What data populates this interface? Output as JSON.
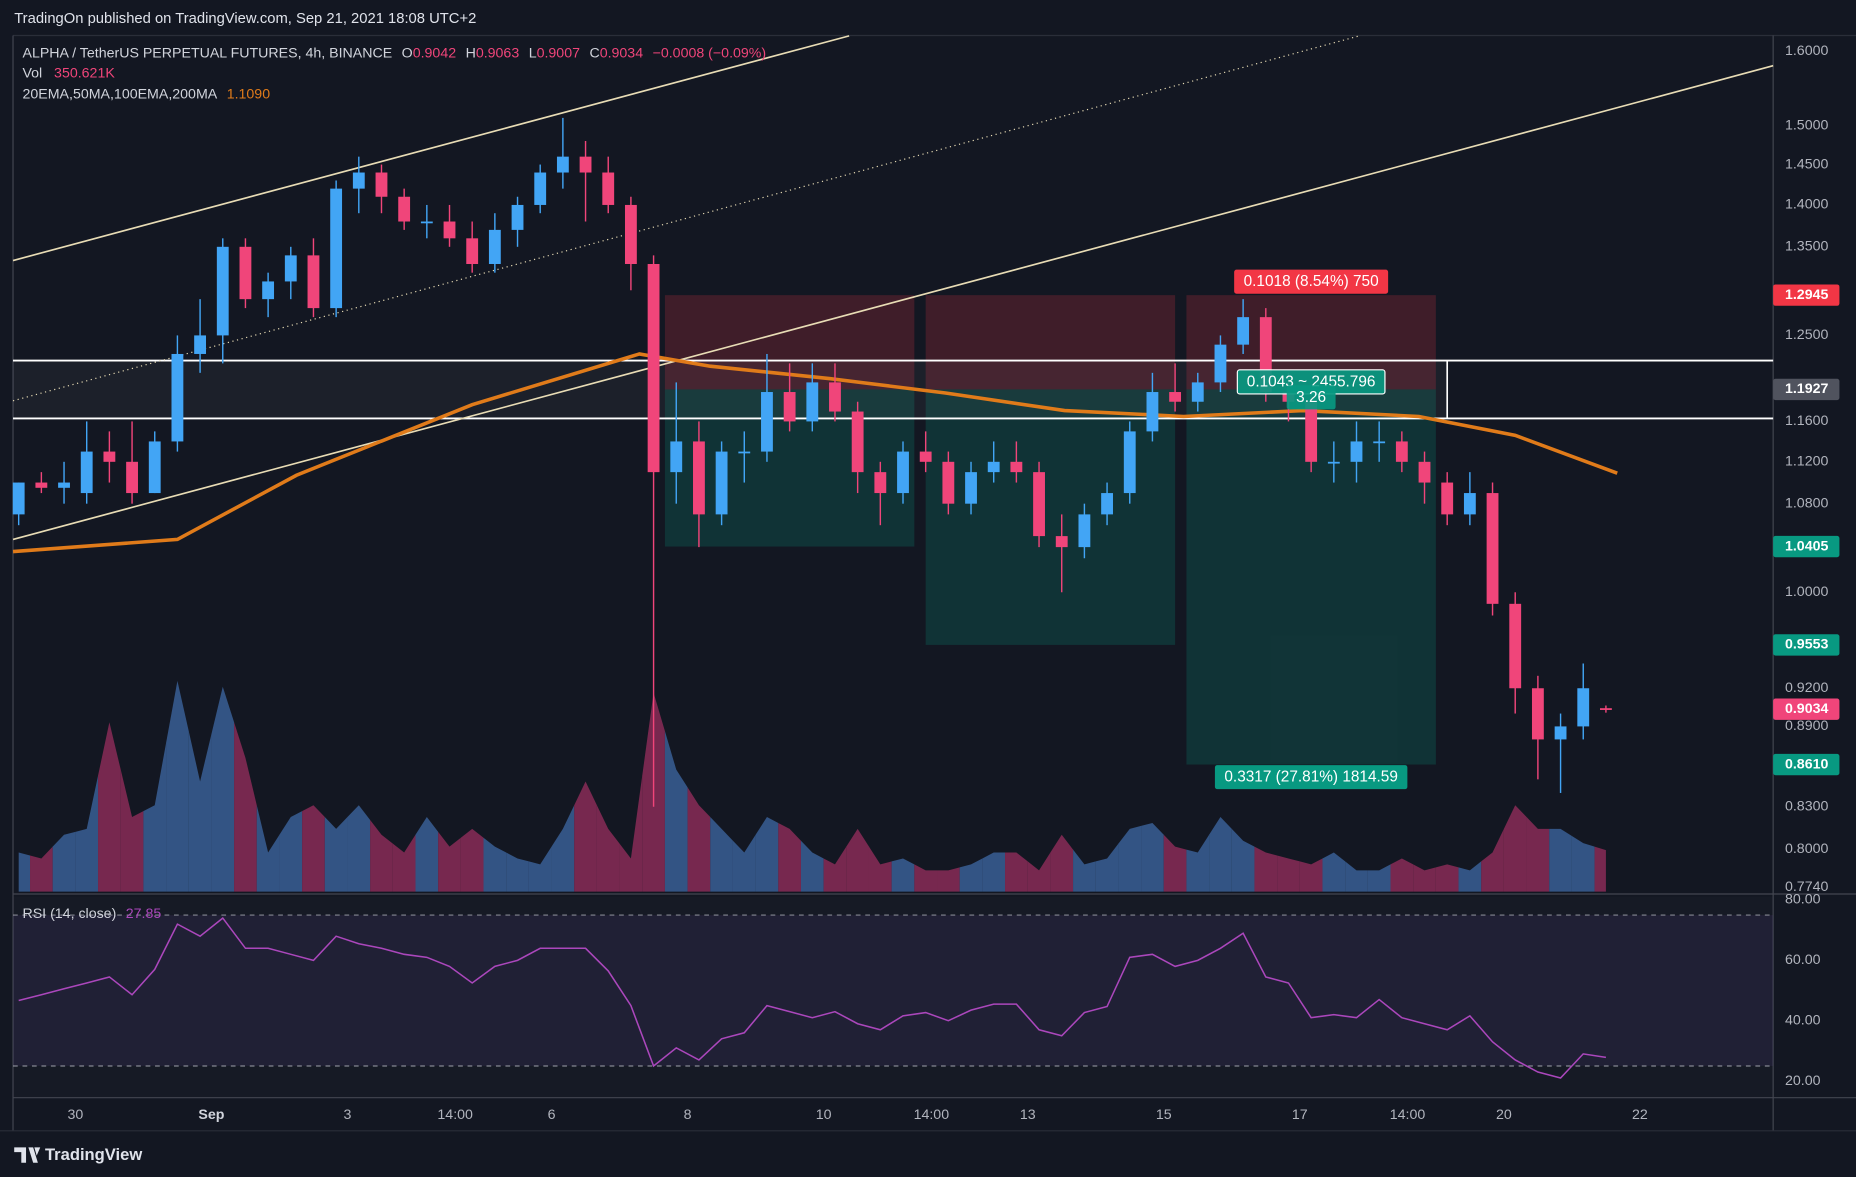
{
  "header": {
    "published": "TradingOn published on TradingView.com, Sep 21, 2021 18:08 UTC+2"
  },
  "footer": {
    "brand": "TradingView"
  },
  "chart_data": {
    "type": "candlestick",
    "title": "ALPHA / TetherUS PERPETUAL FUTURES, 4h, BINANCE",
    "ohlc_legend": [
      {
        "label": "O",
        "value": 0.9042
      },
      {
        "label": "H",
        "value": 0.9063
      },
      {
        "label": "L",
        "value": 0.9007
      },
      {
        "label": "C",
        "value": 0.9034
      }
    ],
    "change": "−0.0008 (−0.09%)",
    "log_scale": true,
    "up_color": "#42a5f5",
    "down_color": "#f0457a",
    "xlim": [
      -22,
      599
    ],
    "ylim": [
      0.771,
      1.622
    ],
    "xticks": [
      {
        "value": 0,
        "label": "30"
      },
      {
        "value": 48,
        "label": "Sep"
      },
      {
        "value": 96,
        "label": "3"
      },
      {
        "value": 134,
        "label": "14:00"
      },
      {
        "value": 168,
        "label": "6"
      },
      {
        "value": 216,
        "label": "8"
      },
      {
        "value": 264,
        "label": "10"
      },
      {
        "value": 302,
        "label": "14:00"
      },
      {
        "value": 336,
        "label": "13"
      },
      {
        "value": 384,
        "label": "15"
      },
      {
        "value": 432,
        "label": "17"
      },
      {
        "value": 470,
        "label": "14:00"
      },
      {
        "value": 504,
        "label": "20"
      },
      {
        "value": 552,
        "label": "22"
      }
    ],
    "yticks": [
      {
        "value": 1.6,
        "label": "1.6000"
      },
      {
        "value": 1.5,
        "label": "1.5000"
      },
      {
        "value": 1.45,
        "label": "1.4500"
      },
      {
        "value": 1.4,
        "label": "1.4000"
      },
      {
        "value": 1.35,
        "label": "1.3500"
      },
      {
        "value": 1.25,
        "label": "1.2500"
      },
      {
        "value": 1.16,
        "label": "1.1600"
      },
      {
        "value": 1.12,
        "label": "1.1200"
      },
      {
        "value": 1.08,
        "label": "1.0800"
      },
      {
        "value": 1.0,
        "label": "1.0000"
      },
      {
        "value": 0.92,
        "label": "0.9200"
      },
      {
        "value": 0.89,
        "label": "0.8900"
      },
      {
        "value": 0.83,
        "label": "0.8300"
      },
      {
        "value": 0.8,
        "label": "0.8000"
      },
      {
        "value": 0.774,
        "label": "0.7740"
      }
    ],
    "x": [
      -20,
      -12,
      -4,
      4,
      12,
      20,
      28,
      36,
      44,
      52,
      60,
      68,
      76,
      84,
      92,
      100,
      108,
      116,
      124,
      132,
      140,
      148,
      156,
      164,
      172,
      180,
      188,
      196,
      204,
      212,
      220,
      228,
      236,
      244,
      252,
      260,
      268,
      276,
      284,
      292,
      300,
      308,
      316,
      324,
      332,
      340,
      348,
      356,
      364,
      372,
      380,
      388,
      396,
      404,
      412,
      420,
      428,
      436,
      444,
      452,
      460,
      468,
      476,
      484,
      492,
      500,
      508,
      516,
      524,
      532,
      540
    ],
    "open": [
      1.07,
      1.1,
      1.095,
      1.09,
      1.13,
      1.12,
      1.09,
      1.14,
      1.23,
      1.25,
      1.35,
      1.29,
      1.31,
      1.34,
      1.28,
      1.42,
      1.44,
      1.41,
      1.38,
      1.38,
      1.36,
      1.33,
      1.37,
      1.4,
      1.44,
      1.46,
      1.44,
      1.4,
      1.33,
      1.11,
      1.14,
      1.07,
      1.13,
      1.13,
      1.19,
      1.16,
      1.2,
      1.17,
      1.11,
      1.09,
      1.13,
      1.12,
      1.08,
      1.11,
      1.12,
      1.11,
      1.05,
      1.04,
      1.07,
      1.09,
      1.15,
      1.19,
      1.18,
      1.2,
      1.24,
      1.27,
      1.19,
      1.18,
      1.12,
      1.12,
      1.14,
      1.14,
      1.12,
      1.1,
      1.07,
      1.09,
      0.99,
      0.92,
      0.88,
      0.89,
      0.9042
    ],
    "high": [
      1.1,
      1.11,
      1.12,
      1.16,
      1.15,
      1.16,
      1.15,
      1.25,
      1.29,
      1.36,
      1.36,
      1.32,
      1.35,
      1.36,
      1.43,
      1.46,
      1.45,
      1.42,
      1.4,
      1.4,
      1.38,
      1.39,
      1.41,
      1.45,
      1.51,
      1.48,
      1.46,
      1.41,
      1.34,
      1.2,
      1.16,
      1.14,
      1.15,
      1.23,
      1.22,
      1.22,
      1.22,
      1.18,
      1.12,
      1.14,
      1.15,
      1.13,
      1.12,
      1.14,
      1.14,
      1.12,
      1.07,
      1.08,
      1.1,
      1.16,
      1.21,
      1.22,
      1.21,
      1.25,
      1.29,
      1.28,
      1.21,
      1.19,
      1.14,
      1.16,
      1.16,
      1.15,
      1.13,
      1.11,
      1.11,
      1.1,
      1.0,
      0.93,
      0.9,
      0.94,
      0.9063
    ],
    "low": [
      1.06,
      1.09,
      1.08,
      1.08,
      1.1,
      1.08,
      1.09,
      1.13,
      1.21,
      1.22,
      1.28,
      1.27,
      1.29,
      1.27,
      1.27,
      1.39,
      1.39,
      1.37,
      1.36,
      1.35,
      1.32,
      1.32,
      1.35,
      1.39,
      1.42,
      1.38,
      1.39,
      1.3,
      0.83,
      1.08,
      1.04,
      1.06,
      1.1,
      1.12,
      1.15,
      1.15,
      1.16,
      1.09,
      1.06,
      1.08,
      1.11,
      1.07,
      1.07,
      1.1,
      1.1,
      1.04,
      1.0,
      1.03,
      1.06,
      1.08,
      1.14,
      1.17,
      1.17,
      1.19,
      1.23,
      1.18,
      1.16,
      1.11,
      1.1,
      1.1,
      1.12,
      1.11,
      1.08,
      1.06,
      1.06,
      0.98,
      0.9,
      0.85,
      0.84,
      0.88,
      0.9007
    ],
    "close": [
      1.1,
      1.095,
      1.1,
      1.13,
      1.12,
      1.09,
      1.14,
      1.23,
      1.25,
      1.35,
      1.29,
      1.31,
      1.34,
      1.28,
      1.42,
      1.44,
      1.41,
      1.38,
      1.38,
      1.36,
      1.33,
      1.37,
      1.4,
      1.44,
      1.46,
      1.44,
      1.4,
      1.33,
      1.11,
      1.14,
      1.07,
      1.13,
      1.13,
      1.19,
      1.16,
      1.2,
      1.17,
      1.11,
      1.09,
      1.13,
      1.12,
      1.08,
      1.11,
      1.12,
      1.11,
      1.05,
      1.04,
      1.07,
      1.09,
      1.15,
      1.19,
      1.18,
      1.2,
      1.24,
      1.27,
      1.19,
      1.18,
      1.12,
      1.12,
      1.14,
      1.14,
      1.12,
      1.1,
      1.07,
      1.09,
      0.99,
      0.92,
      0.88,
      0.89,
      0.92,
      0.9034
    ],
    "volume": {
      "name": "Vol",
      "value_label": "350.621K",
      "ylim": [
        0,
        2000000
      ],
      "values": [
        330000,
        280000,
        480000,
        530000,
        1430000,
        630000,
        730000,
        1780000,
        930000,
        1730000,
        1130000,
        330000,
        630000,
        730000,
        530000,
        730000,
        480000,
        330000,
        630000,
        380000,
        530000,
        380000,
        280000,
        230000,
        530000,
        930000,
        530000,
        280000,
        1680000,
        1030000,
        730000,
        530000,
        330000,
        630000,
        530000,
        330000,
        230000,
        530000,
        230000,
        280000,
        180000,
        180000,
        230000,
        330000,
        330000,
        180000,
        480000,
        230000,
        280000,
        530000,
        580000,
        380000,
        330000,
        630000,
        430000,
        330000,
        280000,
        230000,
        330000,
        180000,
        180000,
        280000,
        180000,
        230000,
        180000,
        330000,
        730000,
        530000,
        530000,
        410000,
        350621
      ]
    },
    "ma": {
      "name": "20EMA,50MA,100EMA,200MA",
      "color": "#e07b1a",
      "last": {
        "value": 1.109,
        "label": "1.1090"
      },
      "x": [
        -22,
        36,
        78,
        140,
        199,
        224,
        266,
        307,
        349,
        391,
        433,
        474,
        508,
        544
      ],
      "values": [
        1.036,
        1.047,
        1.107,
        1.177,
        1.23,
        1.217,
        1.204,
        1.189,
        1.171,
        1.165,
        1.171,
        1.165,
        1.146,
        1.109
      ]
    },
    "rsi": {
      "name": "RSI (14, close)",
      "color": "#ab47bc",
      "last": 27.85,
      "ylim": [
        14.5,
        81.2
      ],
      "bands": [
        75,
        25
      ],
      "yticks": [
        {
          "value": 80,
          "label": "80.00"
        },
        {
          "value": 60,
          "label": "60.00"
        },
        {
          "value": 40,
          "label": "40.00"
        },
        {
          "value": 20,
          "label": "20.00"
        }
      ],
      "values": [
        46.7,
        48.6,
        50.6,
        52.5,
        54.5,
        48.6,
        57,
        72,
        68,
        74,
        64,
        64,
        62,
        60,
        68,
        65.5,
        64,
        62,
        61,
        58,
        52.5,
        58,
        60,
        64,
        64,
        64,
        56.5,
        45,
        25,
        31,
        27,
        34,
        36,
        45,
        43,
        41,
        43,
        39,
        37,
        41.6,
        42.7,
        40,
        43.5,
        45.5,
        45.5,
        37,
        35,
        42.7,
        44.7,
        61,
        62,
        58,
        60,
        64,
        69,
        54.5,
        52.5,
        41,
        42,
        41,
        47,
        41,
        39,
        37,
        41.6,
        33,
        27,
        23,
        21,
        29,
        27.85
      ]
    },
    "trendlines": [
      {
        "x": [
          -22,
          599
        ],
        "values": [
          1.047,
          1.58
        ],
        "style": "solid"
      },
      {
        "x": [
          -22,
          273
        ],
        "values": [
          1.334,
          1.6215
        ],
        "style": "solid"
      },
      {
        "x": [
          -22,
          453
        ],
        "values": [
          1.181,
          1.6215
        ],
        "style": "dotted"
      }
    ],
    "zone": {
      "top": 1.223,
      "bottom": 1.163,
      "end": 484
    },
    "positions": [
      {
        "start": 208,
        "end": 296,
        "stop": 1.2945,
        "entry": 1.1927,
        "target": 1.0405
      },
      {
        "start": 300,
        "end": 388,
        "stop": 1.2945,
        "entry": 1.1927,
        "target": 0.9553
      },
      {
        "start": 392,
        "end": 480,
        "stop": 1.2945,
        "entry": 1.1927,
        "target": 0.861,
        "stop_label": "0.1018 (8.54%) 750",
        "target_label": "0.3317 (27.81%) 1814.59",
        "mid_labels": [
          "0.1043 ~ 2455.796",
          "3.26"
        ]
      }
    ],
    "badges": [
      {
        "value": 1.2945,
        "label": "1.2945",
        "color": "#f23645"
      },
      {
        "value": 1.1927,
        "label": "1.1927",
        "color": "#50535e"
      },
      {
        "value": 1.0405,
        "label": "1.0405",
        "color": "#089981"
      },
      {
        "value": 0.9553,
        "label": "0.9553",
        "color": "#089981"
      },
      {
        "value": 0.861,
        "label": "0.8610",
        "color": "#089981"
      },
      {
        "value": 0.9034,
        "label": "0.9034",
        "color": "#f0457a"
      }
    ]
  }
}
